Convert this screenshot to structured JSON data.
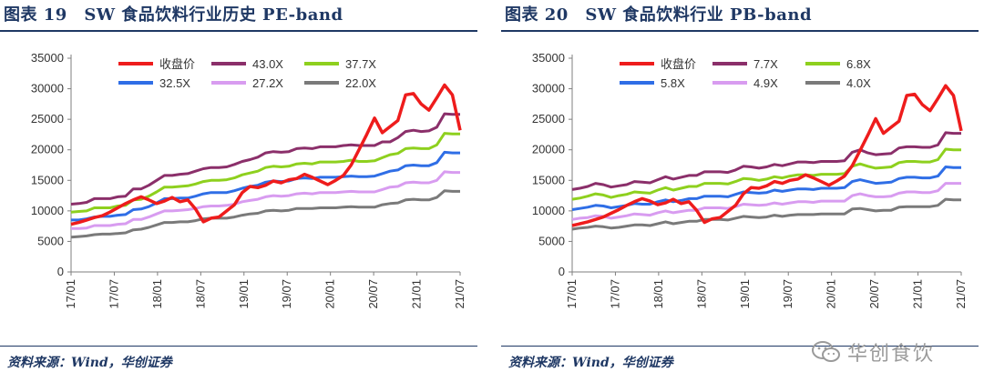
{
  "chart_data": [
    {
      "type": "line",
      "title": "图表 19　SW 食品饮料行业历史 PE-band",
      "source": "资料来源：Wind，华创证券",
      "xlabel": "",
      "ylabel": "",
      "ylim": [
        0,
        35000
      ],
      "yticks": [
        0,
        5000,
        10000,
        15000,
        20000,
        25000,
        30000,
        35000
      ],
      "ytick_labels": [
        "0",
        "5000",
        "10000",
        "15000",
        "20000",
        "25000",
        "30000",
        "35000"
      ],
      "x_tick_labels": [
        "17/01",
        "17/07",
        "18/01",
        "18/07",
        "19/01",
        "19/07",
        "20/01",
        "20/07",
        "21/01",
        "21/07"
      ],
      "legend_position": "top",
      "series": [
        {
          "name": "收盘价",
          "color": "#ee1c1c",
          "values": [
            7800,
            8100,
            8500,
            8900,
            9200,
            9800,
            10500,
            11200,
            11800,
            12300,
            11800,
            11200,
            11600,
            12200,
            11500,
            11800,
            10300,
            8200,
            8800,
            9000,
            10000,
            11000,
            13000,
            14000,
            13800,
            14200,
            14900,
            14600,
            15100,
            15300,
            16000,
            15500,
            14900,
            14300,
            15000,
            15800,
            17500,
            20000,
            22500,
            25200,
            22800,
            23800,
            24800,
            29000,
            29200,
            27500,
            26500,
            28500,
            30600,
            29000,
            23200
          ]
        },
        {
          "name": "43.0X",
          "color": "#8b2f6a",
          "values": [
            11100,
            11200,
            11400,
            12000,
            12000,
            12000,
            12300,
            12400,
            13600,
            13600,
            14200,
            15000,
            15800,
            15800,
            16000,
            16100,
            16500,
            16900,
            17100,
            17100,
            17200,
            17600,
            18100,
            18400,
            18800,
            19500,
            19700,
            19600,
            19700,
            20200,
            20300,
            20200,
            20500,
            20500,
            20500,
            20700,
            20800,
            20700,
            20700,
            20700,
            21300,
            21300,
            22000,
            23000,
            23200,
            23000,
            23100,
            23700,
            25900,
            25800,
            25800
          ]
        },
        {
          "name": "37.7X",
          "color": "#8ed01e",
          "values": [
            9800,
            9900,
            10000,
            10500,
            10500,
            10500,
            10800,
            10900,
            11800,
            11900,
            12400,
            13100,
            13900,
            13900,
            14000,
            14100,
            14400,
            14800,
            15000,
            15000,
            15100,
            15400,
            15900,
            16200,
            16500,
            17100,
            17300,
            17200,
            17300,
            17700,
            17800,
            17700,
            18000,
            18000,
            18000,
            18100,
            18300,
            18100,
            18100,
            18200,
            18700,
            19200,
            19400,
            20200,
            20300,
            20200,
            20200,
            20800,
            22700,
            22600,
            22600
          ]
        },
        {
          "name": "32.5X",
          "color": "#2f6ee6",
          "values": [
            8500,
            8500,
            8700,
            9000,
            9100,
            9100,
            9300,
            9400,
            10200,
            10300,
            10700,
            11300,
            12000,
            12000,
            12100,
            12100,
            12400,
            12800,
            13000,
            13000,
            13000,
            13300,
            13700,
            14000,
            14200,
            14700,
            14900,
            14800,
            14900,
            15300,
            15400,
            15300,
            15500,
            15500,
            15500,
            15600,
            15700,
            15600,
            15600,
            15700,
            16100,
            16500,
            16700,
            17400,
            17500,
            17400,
            17400,
            17900,
            19600,
            19500,
            19500
          ]
        },
        {
          "name": "27.2X",
          "color": "#d89cf0",
          "values": [
            7100,
            7100,
            7200,
            7600,
            7600,
            7600,
            7800,
            7900,
            8600,
            8600,
            9000,
            9500,
            10000,
            10000,
            10100,
            10200,
            10400,
            10700,
            10800,
            10800,
            10900,
            11100,
            11500,
            11700,
            11900,
            12300,
            12500,
            12400,
            12500,
            12800,
            12900,
            12800,
            13000,
            13000,
            13000,
            13100,
            13200,
            13100,
            13100,
            13100,
            13500,
            13900,
            14000,
            14600,
            14700,
            14600,
            14600,
            15000,
            16400,
            16300,
            16300
          ]
        },
        {
          "name": "22.0X",
          "color": "#7a7a7a",
          "values": [
            5700,
            5800,
            5900,
            6100,
            6200,
            6200,
            6300,
            6400,
            6900,
            7000,
            7300,
            7700,
            8100,
            8100,
            8200,
            8200,
            8400,
            8700,
            8800,
            8800,
            8800,
            9000,
            9300,
            9500,
            9600,
            10000,
            10100,
            10000,
            10100,
            10400,
            10400,
            10400,
            10500,
            10500,
            10500,
            10600,
            10700,
            10600,
            10600,
            10600,
            11000,
            11200,
            11300,
            11800,
            11900,
            11800,
            11800,
            12200,
            13300,
            13200,
            13200
          ]
        }
      ]
    },
    {
      "type": "line",
      "title": "图表 20　SW 食品饮料行业 PB-band",
      "source": "资料来源：Wind，华创证券",
      "xlabel": "",
      "ylabel": "",
      "ylim": [
        0,
        35000
      ],
      "yticks": [
        0,
        5000,
        10000,
        15000,
        20000,
        25000,
        30000,
        35000
      ],
      "ytick_labels": [
        "0",
        "5000",
        "10000",
        "15000",
        "20000",
        "25000",
        "30000",
        "35000"
      ],
      "x_tick_labels": [
        "17/01",
        "17/07",
        "18/01",
        "18/07",
        "19/01",
        "19/07",
        "20/01",
        "20/07",
        "21/01",
        "21/07"
      ],
      "legend_position": "top",
      "series": [
        {
          "name": "收盘价",
          "color": "#ee1c1c",
          "values": [
            7600,
            7900,
            8200,
            8600,
            9000,
            9600,
            10200,
            10900,
            11500,
            12000,
            11600,
            11000,
            11300,
            11900,
            11200,
            11500,
            10100,
            8100,
            8700,
            8900,
            9900,
            10900,
            12800,
            13800,
            13700,
            14100,
            14800,
            14500,
            15000,
            15200,
            15900,
            15400,
            14800,
            14200,
            14900,
            15700,
            17400,
            19900,
            22400,
            25100,
            22700,
            23700,
            24700,
            28900,
            29100,
            27400,
            26400,
            28400,
            30500,
            28900,
            23100
          ]
        },
        {
          "name": "7.7X",
          "color": "#8b2f6a",
          "values": [
            13500,
            13700,
            14000,
            14500,
            14300,
            13900,
            14100,
            14300,
            14800,
            14700,
            14600,
            15100,
            15600,
            15200,
            15500,
            15800,
            15800,
            16400,
            16400,
            16400,
            16300,
            16700,
            17300,
            17200,
            17000,
            17200,
            17600,
            17400,
            17700,
            18000,
            18000,
            17900,
            18100,
            18100,
            18100,
            18200,
            19600,
            20000,
            19500,
            19200,
            19300,
            19400,
            20300,
            20500,
            20500,
            20400,
            20400,
            20800,
            22800,
            22700,
            22700
          ]
        },
        {
          "name": "6.8X",
          "color": "#8ed01e",
          "values": [
            11900,
            12100,
            12400,
            12800,
            12600,
            12200,
            12500,
            12700,
            13100,
            13000,
            12900,
            13400,
            13800,
            13400,
            13700,
            14000,
            14000,
            14500,
            14500,
            14500,
            14400,
            14800,
            15300,
            15200,
            15000,
            15200,
            15600,
            15400,
            15700,
            15900,
            15900,
            15800,
            16000,
            16000,
            16000,
            16100,
            17300,
            17700,
            17300,
            17000,
            17100,
            17200,
            17900,
            18100,
            18100,
            18000,
            18000,
            18400,
            20100,
            20000,
            20000
          ]
        },
        {
          "name": "5.8X",
          "color": "#2f6ee6",
          "values": [
            10200,
            10400,
            10600,
            10900,
            10800,
            10500,
            10700,
            10900,
            11200,
            11100,
            11100,
            11500,
            11800,
            11500,
            11700,
            12000,
            12000,
            12400,
            12400,
            12400,
            12300,
            12700,
            13100,
            13000,
            12900,
            13000,
            13400,
            13200,
            13400,
            13600,
            13600,
            13500,
            13700,
            13700,
            13700,
            13800,
            14800,
            15100,
            14800,
            14500,
            14600,
            14700,
            15300,
            15500,
            15500,
            15400,
            15400,
            15700,
            17200,
            17100,
            17100
          ]
        },
        {
          "name": "4.9X",
          "color": "#d89cf0",
          "values": [
            8600,
            8800,
            8900,
            9200,
            9100,
            8800,
            9000,
            9200,
            9500,
            9400,
            9300,
            9700,
            10000,
            9700,
            9900,
            10100,
            10100,
            10500,
            10500,
            10500,
            10400,
            10700,
            11100,
            11000,
            10900,
            11000,
            11300,
            11100,
            11300,
            11500,
            11500,
            11400,
            11600,
            11600,
            11600,
            11600,
            12500,
            12800,
            12500,
            12300,
            12300,
            12400,
            12900,
            13100,
            13100,
            13000,
            13000,
            13300,
            14500,
            14500,
            14500
          ]
        },
        {
          "name": "4.0X",
          "color": "#7a7a7a",
          "values": [
            7000,
            7200,
            7300,
            7500,
            7400,
            7200,
            7300,
            7500,
            7700,
            7700,
            7600,
            7900,
            8200,
            7900,
            8100,
            8300,
            8300,
            8600,
            8600,
            8600,
            8500,
            8800,
            9100,
            9000,
            8900,
            9000,
            9300,
            9100,
            9300,
            9400,
            9400,
            9400,
            9500,
            9500,
            9500,
            9500,
            10300,
            10400,
            10200,
            10000,
            10100,
            10100,
            10600,
            10700,
            10700,
            10700,
            10700,
            10900,
            11900,
            11800,
            11800
          ]
        }
      ]
    }
  ],
  "watermark": {
    "text": "华创食饮",
    "icon": "wechat-icon"
  }
}
